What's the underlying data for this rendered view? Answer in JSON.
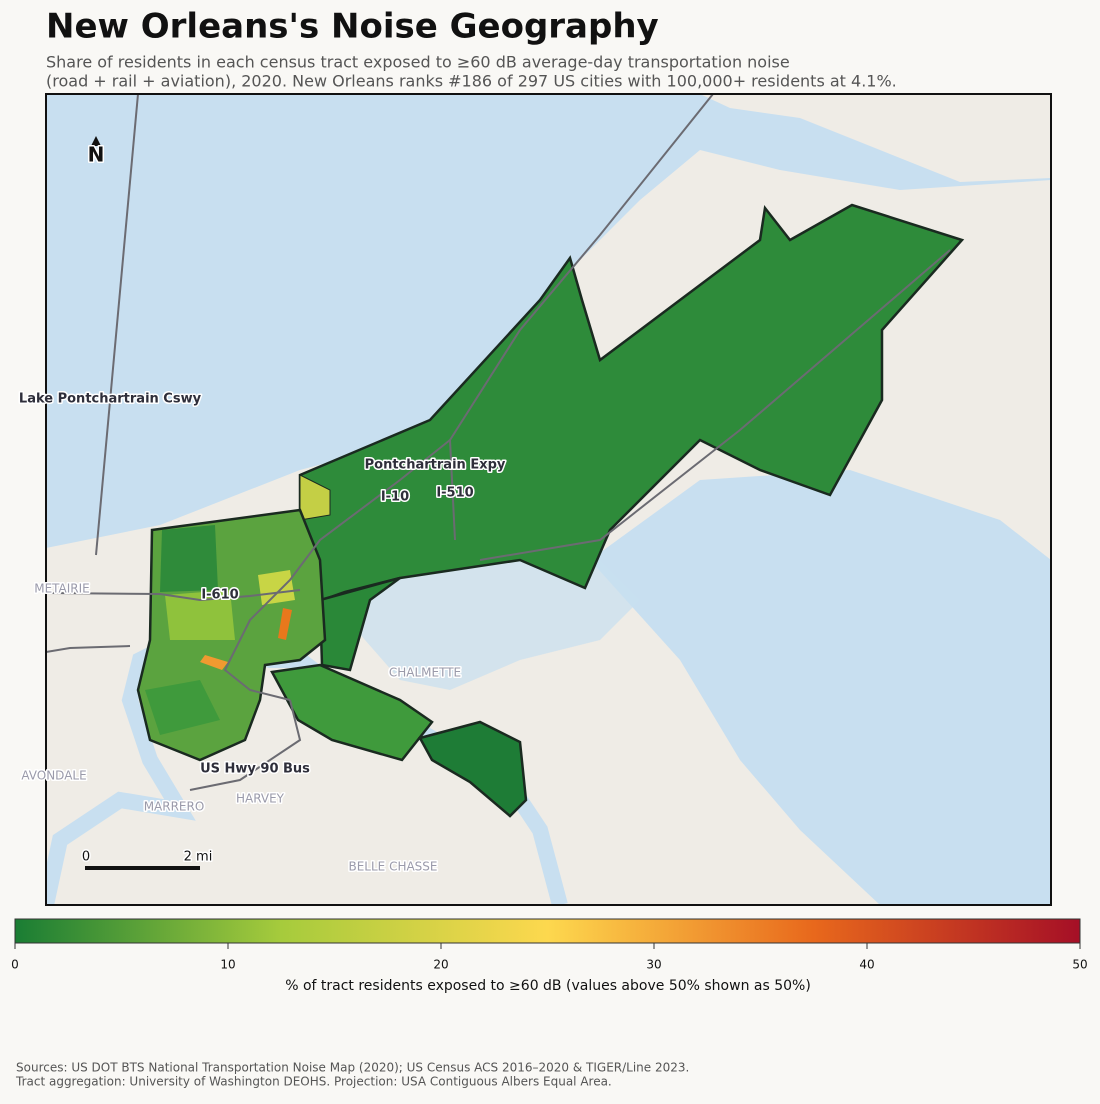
{
  "title": "New Orleans's Noise Geography",
  "subtitle": [
    "Share of residents in each census tract exposed to ≥60 dB average-day transportation noise",
    "(road + rail + aviation), 2020. New Orleans ranks #186 of 297 US cities with 100,000+ residents at 4.1%."
  ],
  "map": {
    "north": "N",
    "road_labels": [
      "Lake Pontchartrain Cswy",
      "Pontchartrain Expy",
      "I-10",
      "I-510",
      "I-610",
      "US Hwy 90 Bus"
    ],
    "place_labels": [
      "METAIRIE",
      "CHALMETTE",
      "AVONDALE",
      "HARVEY",
      "MARRERO",
      "BELLE CHASSE"
    ],
    "scale_bar": [
      "0",
      "2 mi"
    ]
  },
  "colorbar": {
    "lim": [
      0,
      50
    ],
    "ticks": [
      0,
      10,
      20,
      30,
      40,
      50
    ],
    "colors": [
      "#1a7d34",
      "#a6cb3c",
      "#fdd84e",
      "#e8681c",
      "#a50f26"
    ],
    "label": "% of tract residents exposed to ≥60 dB (values above 50% shown as 50%)"
  },
  "sources": [
    "Sources: US DOT BTS National Transportation Noise Map (2020); US Census ACS 2016–2020 & TIGER/Line 2023.",
    "Tract aggregation: University of Washington DEOHS. Projection: USA Contiguous Albers Equal Area."
  ]
}
